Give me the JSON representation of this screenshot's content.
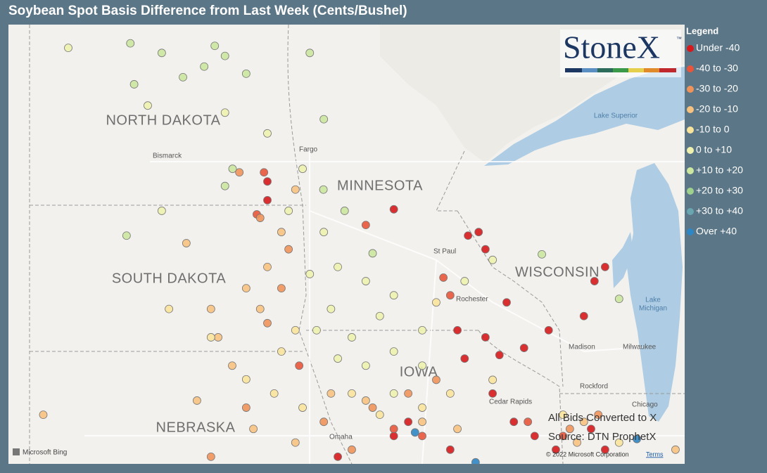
{
  "title": "Soybean Spot Basis Difference from Last Week (Cents/Bushel)",
  "logo": {
    "name": "StoneX",
    "mark": "™"
  },
  "legend": {
    "title": "Legend",
    "items": [
      {
        "label": "Under -40",
        "color": "#d7191c",
        "points": [
          [
            -94.34,
            45.87
          ],
          [
            -92.38,
            45.35
          ],
          [
            -92.1,
            45.42
          ],
          [
            -91.92,
            45.08
          ],
          [
            -88.76,
            44.73
          ],
          [
            -89.04,
            44.45
          ],
          [
            -89.32,
            43.76
          ],
          [
            -90.25,
            43.48
          ],
          [
            -91.36,
            44.03
          ],
          [
            -91.92,
            43.34
          ],
          [
            -92.66,
            43.48
          ],
          [
            -92.47,
            42.92
          ],
          [
            -91.73,
            42.23
          ],
          [
            -91.17,
            41.67
          ],
          [
            -90.62,
            41.39
          ],
          [
            -90.06,
            41.12
          ],
          [
            -89.13,
            41.53
          ],
          [
            -88.76,
            41.12
          ],
          [
            -93.96,
            41.67
          ],
          [
            -94.34,
            41.39
          ],
          [
            -95.82,
            40.98
          ],
          [
            -92.85,
            41.12
          ],
          [
            -97.68,
            46.42
          ],
          [
            -97.68,
            46.05
          ],
          [
            -90.9,
            43.13
          ],
          [
            -91.55,
            42.99
          ]
        ]
      },
      {
        "label": "-40 to -30",
        "color": "#e8553a",
        "points": [
          [
            -97.77,
            46.6
          ],
          [
            -97.96,
            45.77
          ],
          [
            -95.08,
            45.56
          ],
          [
            -96.84,
            42.78
          ],
          [
            -94.34,
            41.53
          ],
          [
            -93.03,
            44.52
          ],
          [
            -92.85,
            44.17
          ],
          [
            -90.8,
            41.67
          ],
          [
            -93.59,
            41.39
          ],
          [
            -89.87,
            41.39
          ]
        ]
      },
      {
        "label": "-30 to -20",
        "color": "#f0935a",
        "points": [
          [
            -97.87,
            45.7
          ],
          [
            -97.31,
            44.31
          ],
          [
            -97.68,
            43.62
          ],
          [
            -98.24,
            41.95
          ],
          [
            -96.19,
            41.67
          ],
          [
            -95.45,
            41.12
          ],
          [
            -94.9,
            41.95
          ],
          [
            -93.96,
            42.23
          ],
          [
            -93.22,
            42.5
          ],
          [
            -89.69,
            41.53
          ],
          [
            -88.94,
            41.81
          ],
          [
            -97.12,
            45.08
          ],
          [
            -98.42,
            46.6
          ],
          [
            -99.17,
            40.98
          ]
        ]
      },
      {
        "label": "-20 to -10",
        "color": "#f7c27f",
        "points": [
          [
            -97.68,
            44.73
          ],
          [
            -98.24,
            44.31
          ],
          [
            -99.17,
            43.9
          ],
          [
            -99.82,
            45.2
          ],
          [
            -96.94,
            46.26
          ],
          [
            -97.31,
            45.42
          ],
          [
            -97.87,
            43.9
          ],
          [
            -98.61,
            42.78
          ],
          [
            -99.54,
            42.09
          ],
          [
            -98.05,
            41.53
          ],
          [
            -96.94,
            41.26
          ],
          [
            -96.0,
            42.23
          ],
          [
            -95.08,
            42.09
          ],
          [
            -93.59,
            41.67
          ],
          [
            -92.66,
            41.53
          ],
          [
            -89.32,
            41.67
          ],
          [
            -89.5,
            41.26
          ],
          [
            -86.9,
            41.12
          ],
          [
            -98.98,
            43.34
          ],
          [
            -103.6,
            41.81
          ]
        ]
      },
      {
        "label": "-10 to 0",
        "color": "#f9e49c",
        "points": [
          [
            -96.94,
            43.48
          ],
          [
            -97.31,
            43.06
          ],
          [
            -97.5,
            42.23
          ],
          [
            -96.75,
            41.95
          ],
          [
            -95.45,
            42.23
          ],
          [
            -94.71,
            41.81
          ],
          [
            -93.59,
            41.95
          ],
          [
            -92.85,
            42.23
          ],
          [
            -91.73,
            42.5
          ],
          [
            -89.87,
            41.81
          ],
          [
            -88.39,
            41.26
          ],
          [
            -100.28,
            43.9
          ],
          [
            -99.17,
            43.34
          ],
          [
            -98.24,
            42.51
          ],
          [
            -93.22,
            44.03
          ]
        ]
      },
      {
        "label": "0 to +10",
        "color": "#eef2ae",
        "points": [
          [
            -102.94,
            49.06
          ],
          [
            -100.84,
            47.92
          ],
          [
            -97.68,
            47.37
          ],
          [
            -96.75,
            46.67
          ],
          [
            -96.19,
            45.42
          ],
          [
            -95.82,
            44.73
          ],
          [
            -95.08,
            44.45
          ],
          [
            -96.0,
            43.9
          ],
          [
            -96.38,
            43.48
          ],
          [
            -95.45,
            43.34
          ],
          [
            -94.71,
            43.76
          ],
          [
            -94.34,
            44.17
          ],
          [
            -93.59,
            43.48
          ],
          [
            -95.82,
            42.92
          ],
          [
            -95.08,
            42.78
          ],
          [
            -94.34,
            43.06
          ],
          [
            -93.59,
            42.78
          ],
          [
            -94.34,
            42.23
          ],
          [
            -92.47,
            44.45
          ],
          [
            -98.8,
            47.78
          ],
          [
            -97.12,
            45.84
          ],
          [
            -96.56,
            44.59
          ],
          [
            -91.73,
            44.87
          ],
          [
            -100.47,
            45.84
          ]
        ]
      },
      {
        "label": "+10 to +20",
        "color": "#cbe7a0",
        "points": [
          [
            -101.3,
            49.15
          ],
          [
            -100.47,
            48.96
          ],
          [
            -99.35,
            48.69
          ],
          [
            -99.07,
            49.1
          ],
          [
            -99.91,
            48.48
          ],
          [
            -101.2,
            48.34
          ],
          [
            -98.24,
            48.55
          ],
          [
            -98.8,
            48.9
          ],
          [
            -96.56,
            48.96
          ],
          [
            -96.19,
            47.65
          ],
          [
            -98.8,
            46.33
          ],
          [
            -98.6,
            46.67
          ],
          [
            -96.2,
            46.26
          ],
          [
            -95.64,
            45.84
          ],
          [
            -101.4,
            45.35
          ],
          [
            -90.43,
            44.98
          ],
          [
            -88.39,
            44.1
          ],
          [
            -94.9,
            45.0
          ]
        ]
      },
      {
        "label": "+20 to +30",
        "color": "#9fd18e",
        "points": []
      },
      {
        "label": "+30 to +40",
        "color": "#6aa6b0",
        "points": []
      },
      {
        "label": "Over +40",
        "color": "#2f86c4",
        "points": [
          [
            -93.78,
            41.46
          ],
          [
            -87.92,
            41.33
          ],
          [
            -92.18,
            40.87
          ]
        ]
      }
    ]
  },
  "states": [
    "NORTH DAKOTA",
    "SOUTH DAKOTA",
    "MINNESOTA",
    "WISCONSIN",
    "IOWA",
    "NEBRASKA"
  ],
  "cities": [
    "Bismarck",
    "Fargo",
    "St Paul",
    "Rochester",
    "Madison",
    "Milwaukee",
    "Rockford",
    "Chicago",
    "Cedar Rapids",
    "Omaha"
  ],
  "water": [
    "Lake Superior",
    "Lake",
    "Michigan"
  ],
  "notes": [
    "All Bids Converted to X",
    "Source: DTN ProphetX"
  ],
  "attribution": {
    "brand": "Microsoft Bing",
    "copyright": "© 2022 Microsoft Corporation",
    "terms": "Terms"
  }
}
